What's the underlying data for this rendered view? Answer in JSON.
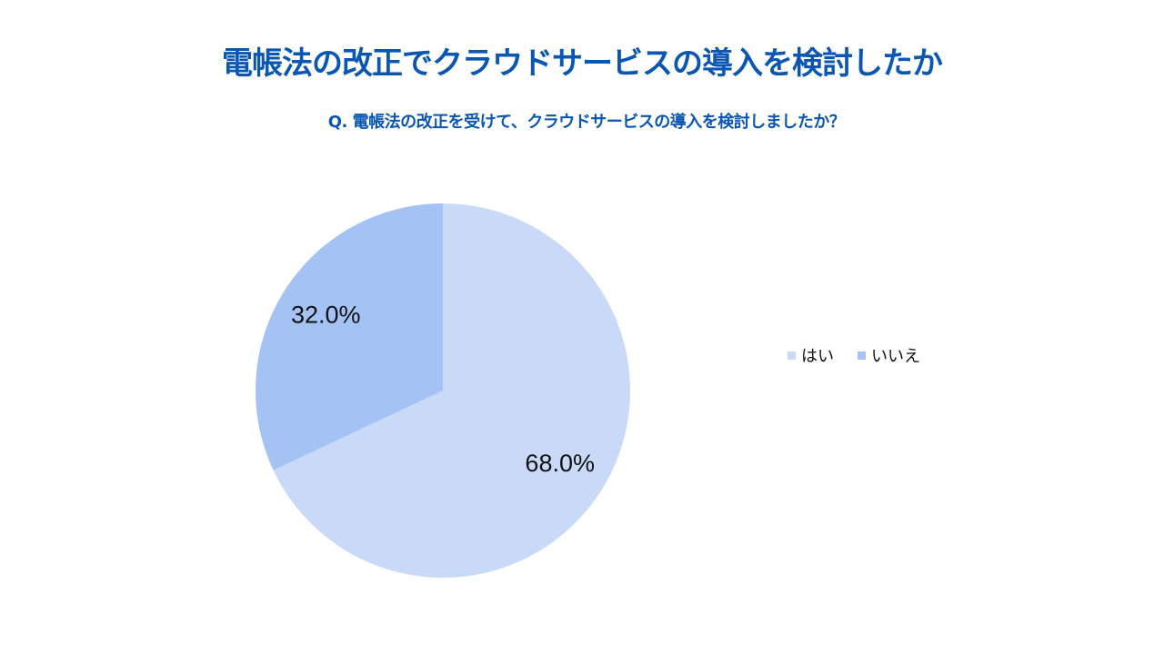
{
  "colors": {
    "title": "#0a56b3",
    "slice_yes": "#c9daf8",
    "slice_no": "#a4c2f4",
    "label": "#111111"
  },
  "chart_data": {
    "type": "pie",
    "title": "電帳法の改正でクラウドサービスの導入を検討したか",
    "subtitle": "Q. 電帳法の改正を受けて、クラウドサービスの導入を検討しましたか？",
    "categories": [
      "はい",
      "いいえ"
    ],
    "values": [
      68.0,
      32.0
    ],
    "data_labels": [
      "68.0%",
      "32.0%"
    ],
    "colors": [
      "#c9daf8",
      "#a4c2f4"
    ],
    "legend_position": "right"
  }
}
